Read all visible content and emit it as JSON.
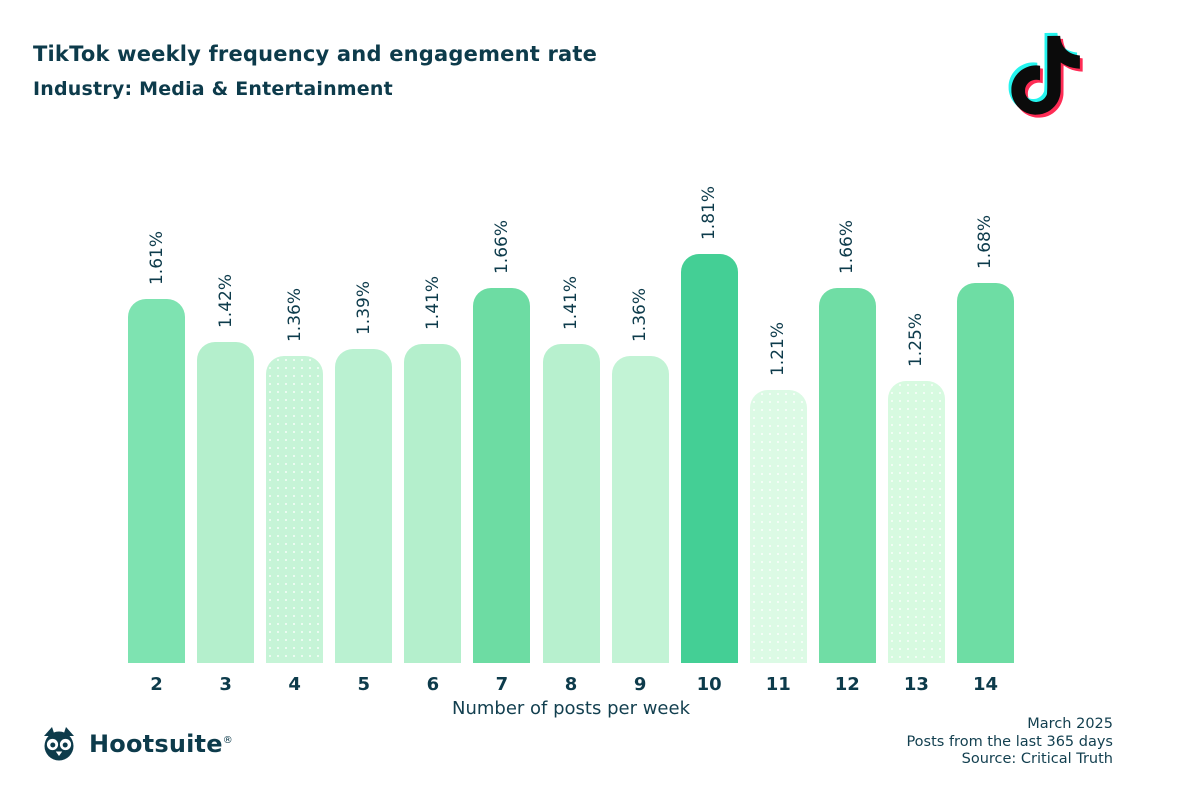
{
  "header": {
    "title": "TikTok weekly frequency and engagement rate",
    "subtitle": "Industry: Media & Entertainment"
  },
  "icons": {
    "tiktok": "tiktok-note-icon",
    "hootsuite": "hootsuite-owl-icon"
  },
  "colors": {
    "text_dark_teal": "#0d3b4b",
    "bar_darkest": "#44cf95",
    "bar_dark": "#6edda4",
    "bar_light": "#b7f0ce",
    "bar_lightest": "#dcfae5",
    "tiktok_cyan": "#25f4ee",
    "tiktok_pink": "#fe2c55"
  },
  "chart_data": {
    "type": "bar",
    "title": "TikTok weekly frequency and engagement rate",
    "subtitle": "Industry: Media & Entertainment",
    "categories": [
      "2",
      "3",
      "4",
      "5",
      "6",
      "7",
      "8",
      "9",
      "10",
      "11",
      "12",
      "13",
      "14"
    ],
    "values": [
      1.61,
      1.42,
      1.36,
      1.39,
      1.41,
      1.66,
      1.41,
      1.36,
      1.81,
      1.21,
      1.66,
      1.25,
      1.68
    ],
    "value_labels": [
      "1.61%",
      "1.42%",
      "1.36%",
      "1.39%",
      "1.41%",
      "1.66%",
      "1.41%",
      "1.36%",
      "1.81%",
      "1.21%",
      "1.66%",
      "1.25%",
      "1.68%"
    ],
    "bar_colors": [
      "#7ee3b1",
      "#b4efcc",
      "#c6f4d7",
      "#baf1d1",
      "#b4efcc",
      "#6ddca3",
      "#b7f0ce",
      "#c2f3d5",
      "#44cf95",
      "#dcfae5",
      "#70dda5",
      "#d7fae0",
      "#6edda4"
    ],
    "dotted_bars": [
      false,
      false,
      true,
      false,
      false,
      false,
      false,
      false,
      false,
      true,
      false,
      true,
      false
    ],
    "xlabel": "Number of posts per week",
    "ylabel": "",
    "ylim": [
      0,
      1.81
    ],
    "grid": false,
    "legend": "none",
    "value_label_rotation": "vertical-bottom-to-top"
  },
  "footer": {
    "brand": "Hootsuite",
    "registered": "®",
    "lines": [
      "March 2025",
      "Posts from the last 365 days",
      "Source: Critical Truth"
    ]
  }
}
